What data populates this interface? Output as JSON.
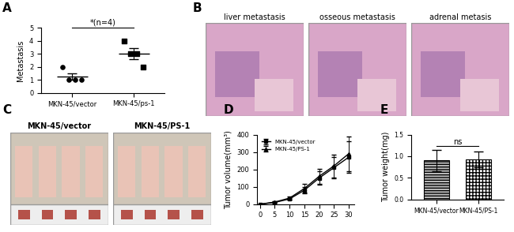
{
  "chart_data": [
    {
      "panel_label": "A",
      "type": "scatter",
      "y_label": "Metastasis",
      "categories": [
        "MKN-45/vector",
        "MKN-45/ps-1"
      ],
      "groups": [
        {
          "values": [
            2,
            1,
            1,
            1
          ],
          "mean": 1.25,
          "error": 0.25,
          "marker": "circle",
          "color": "#000000"
        },
        {
          "values": [
            4,
            3,
            3,
            2
          ],
          "mean": 3,
          "error": 0.41,
          "marker": "square",
          "color": "#000000"
        }
      ],
      "ylim": [
        0,
        5
      ],
      "yticks": [
        0,
        1,
        2,
        3,
        4,
        5
      ],
      "annotations": [
        "*(n=4)"
      ]
    },
    {
      "panel_label": "D",
      "type": "line",
      "y_label": "Tumor volume(mm³)",
      "x": [
        0,
        5,
        10,
        15,
        20,
        25,
        30
      ],
      "series": [
        {
          "name": "MKN-45/vector",
          "color": "#000000",
          "marker": "square",
          "values": [
            0,
            10,
            30,
            80,
            150,
            210,
            270
          ],
          "errors": [
            0,
            3,
            6,
            20,
            40,
            60,
            90
          ]
        },
        {
          "name": "MKN-45/PS-1",
          "color": "#000000",
          "marker": "triangle",
          "values": [
            0,
            12,
            35,
            90,
            160,
            220,
            290
          ],
          "errors": [
            0,
            4,
            8,
            25,
            45,
            65,
            100
          ]
        }
      ],
      "xlim": [
        -1,
        32
      ],
      "xticks": [
        0,
        5,
        10,
        15,
        20,
        25,
        30
      ],
      "ylim": [
        0,
        400
      ],
      "yticks": [
        0,
        100,
        200,
        300,
        400
      ],
      "legend": "upper left"
    },
    {
      "panel_label": "E",
      "type": "bar",
      "y_label": "Tumor weight(mg)",
      "categories": [
        "MKN-45/vector",
        "MKN-45/PS-1"
      ],
      "values": [
        0.9,
        0.93
      ],
      "errors": [
        0.25,
        0.18
      ],
      "colors": [
        "#bdbdbd",
        "#ffffff"
      ],
      "ylim": [
        0,
        1.5
      ],
      "yticks": [
        {
          "value": 0,
          "label": "0.0"
        },
        {
          "value": 0.5,
          "label": "0.5"
        },
        {
          "value": 1.0,
          "label": "1.0"
        },
        {
          "value": 1.5,
          "label": "1.5"
        }
      ],
      "annotations": [
        "ns"
      ]
    }
  ],
  "image_panels": [
    {
      "panel_label": "B",
      "captions": [
        "liver metastasis",
        "osseous metastasis",
        "adrenal metasis"
      ]
    },
    {
      "panel_label": "C",
      "captions": [
        "MKN-45/vector",
        "MKN-45/PS-1"
      ]
    }
  ]
}
